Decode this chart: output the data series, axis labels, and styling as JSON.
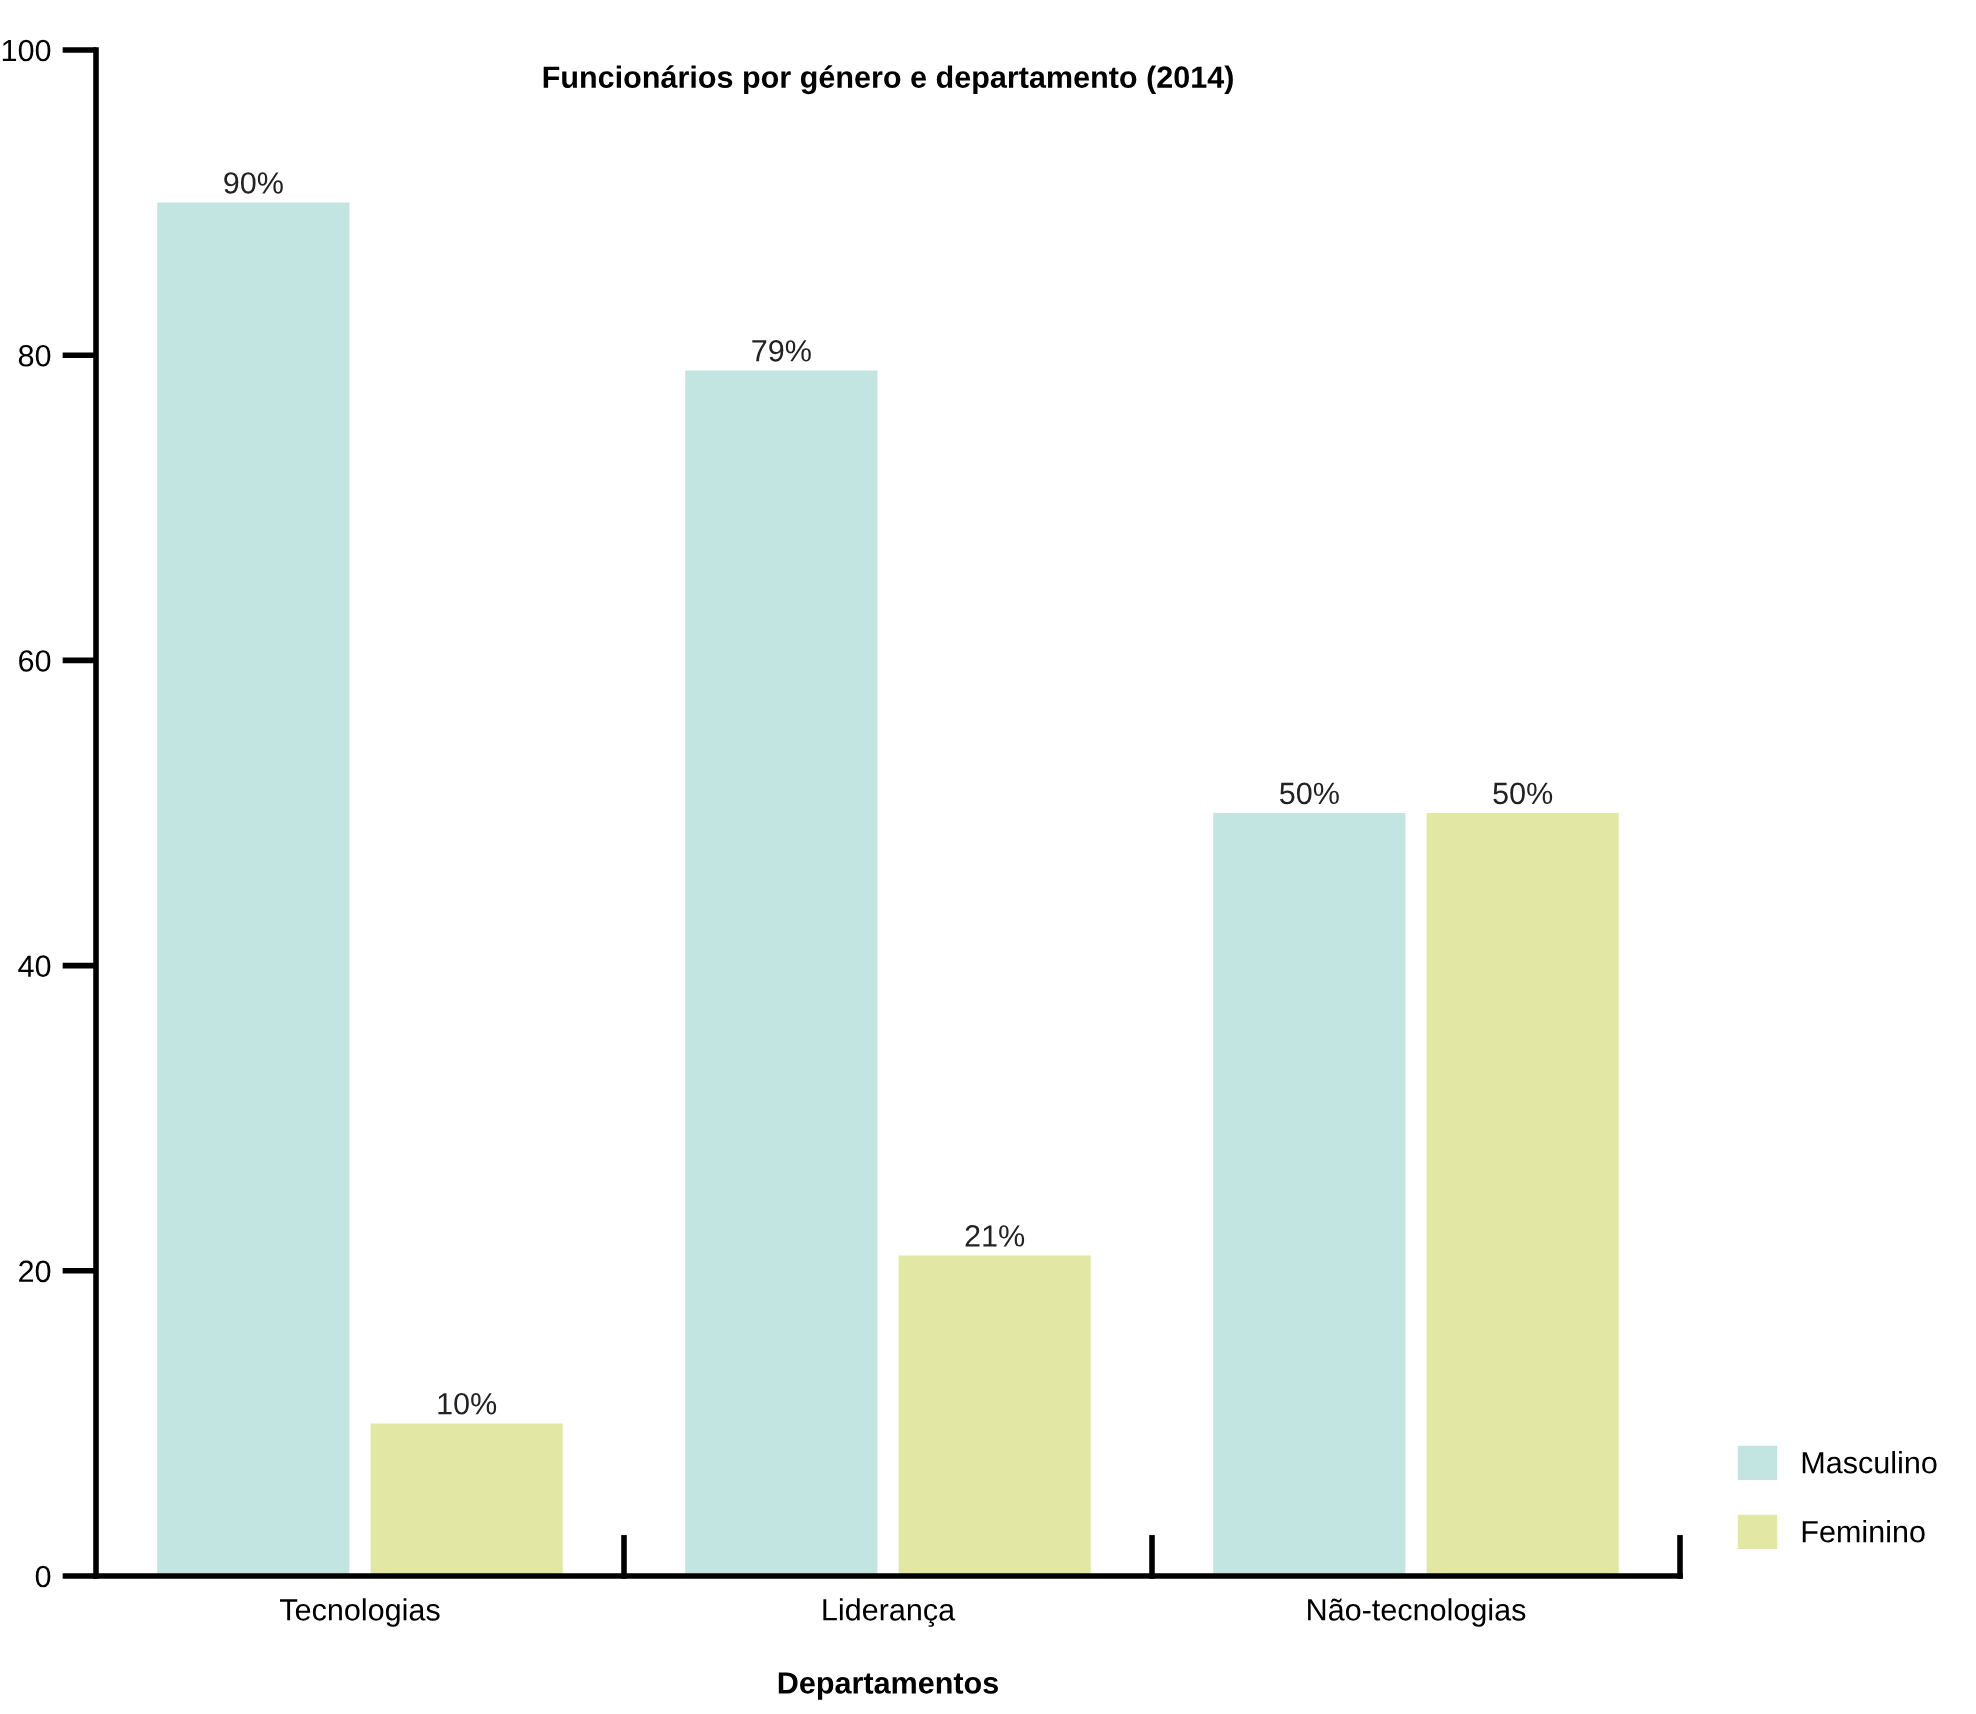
{
  "chart_data": {
    "type": "bar",
    "title": "Funcionários por género e departamento (2014)",
    "xlabel": "Departamentos",
    "categories": [
      "Tecnologias",
      "Liderança",
      "Não-tecnologias"
    ],
    "series": [
      {
        "name": "Masculino",
        "color": "#c3e5e1",
        "values": [
          90,
          79,
          50
        ],
        "value_labels": [
          "90%",
          "79%",
          "50%"
        ]
      },
      {
        "name": "Feminino",
        "color": "#e2e8a4",
        "values": [
          10,
          21,
          50
        ],
        "value_labels": [
          "10%",
          "21%",
          "50%"
        ]
      }
    ],
    "ylim": [
      0,
      100
    ],
    "yticks": [
      0,
      20,
      40,
      60,
      80,
      100
    ],
    "grid": false,
    "legend": "bottom right"
  }
}
